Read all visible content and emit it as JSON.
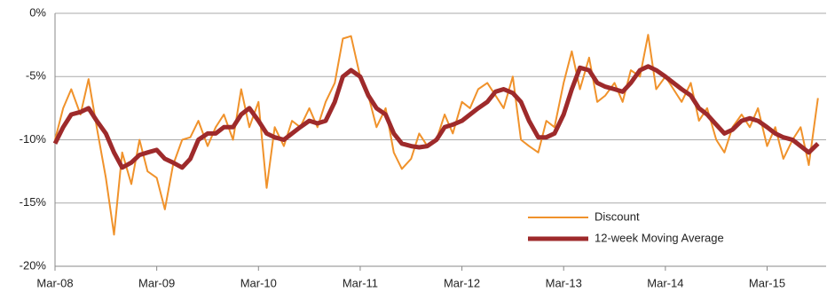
{
  "chart_data": {
    "type": "line",
    "x": [
      2008.17,
      2008.25,
      2008.33,
      2008.42,
      2008.5,
      2008.58,
      2008.67,
      2008.75,
      2008.83,
      2008.92,
      2009.0,
      2009.08,
      2009.17,
      2009.25,
      2009.33,
      2009.42,
      2009.5,
      2009.58,
      2009.67,
      2009.75,
      2009.83,
      2009.92,
      2010.0,
      2010.08,
      2010.17,
      2010.25,
      2010.33,
      2010.42,
      2010.5,
      2010.58,
      2010.67,
      2010.75,
      2010.83,
      2010.92,
      2011.0,
      2011.08,
      2011.17,
      2011.25,
      2011.33,
      2011.42,
      2011.5,
      2011.58,
      2011.67,
      2011.75,
      2011.83,
      2011.92,
      2012.0,
      2012.08,
      2012.17,
      2012.25,
      2012.33,
      2012.42,
      2012.5,
      2012.58,
      2012.67,
      2012.75,
      2012.83,
      2012.92,
      2013.0,
      2013.08,
      2013.17,
      2013.25,
      2013.33,
      2013.42,
      2013.5,
      2013.58,
      2013.67,
      2013.75,
      2013.83,
      2013.92,
      2014.0,
      2014.08,
      2014.17,
      2014.25,
      2014.33,
      2014.42,
      2014.5,
      2014.58,
      2014.67,
      2014.75,
      2014.83,
      2014.92,
      2015.0,
      2015.08,
      2015.17,
      2015.25,
      2015.33,
      2015.42,
      2015.5,
      2015.58,
      2015.67
    ],
    "series": [
      {
        "name": "Discount",
        "color": "#f0922b",
        "width": 2,
        "values": [
          -10,
          -7.5,
          -6,
          -8,
          -5.2,
          -9,
          -13,
          -17.5,
          -11,
          -13.5,
          -10,
          -12.5,
          -13,
          -15.5,
          -12,
          -10,
          -9.8,
          -8.5,
          -10.5,
          -9,
          -8,
          -10,
          -6,
          -9,
          -7,
          -13.8,
          -9,
          -10.5,
          -8.5,
          -9,
          -7.5,
          -9,
          -7,
          -5.5,
          -2,
          -1.8,
          -5,
          -6.5,
          -9,
          -7.5,
          -11,
          -12.3,
          -11.5,
          -9.5,
          -10.5,
          -10,
          -8,
          -9.5,
          -7,
          -7.5,
          -6,
          -5.5,
          -6.5,
          -7.5,
          -5,
          -10,
          -10.5,
          -11,
          -8.5,
          -9,
          -5.5,
          -3,
          -6,
          -3.5,
          -7,
          -6.5,
          -5.5,
          -7,
          -4.5,
          -5,
          -1.7,
          -6,
          -5,
          -6,
          -7,
          -5.5,
          -8.5,
          -7.5,
          -10,
          -11,
          -9,
          -8,
          -9,
          -7.5,
          -10.5,
          -9,
          -11.5,
          -10,
          -9,
          -12,
          -6.7
        ]
      },
      {
        "name": "12-week Moving Average",
        "color": "#9e2a2b",
        "width": 5,
        "values": [
          -10.3,
          -9,
          -8,
          -7.8,
          -7.5,
          -8.5,
          -9.5,
          -11,
          -12.2,
          -11.8,
          -11.2,
          -11,
          -10.8,
          -11.5,
          -11.8,
          -12.2,
          -11.5,
          -10,
          -9.5,
          -9.5,
          -9,
          -9,
          -8,
          -7.5,
          -8.5,
          -9.5,
          -9.8,
          -10,
          -9.5,
          -9,
          -8.5,
          -8.7,
          -8.5,
          -7,
          -5,
          -4.5,
          -5,
          -6.5,
          -7.5,
          -8,
          -9.5,
          -10.3,
          -10.5,
          -10.6,
          -10.5,
          -10,
          -9,
          -8.8,
          -8.5,
          -8,
          -7.5,
          -7,
          -6.2,
          -6,
          -6.3,
          -7,
          -8.5,
          -9.8,
          -9.8,
          -9.5,
          -8,
          -6,
          -4.3,
          -4.5,
          -5.5,
          -5.8,
          -6,
          -6.2,
          -5.5,
          -4.5,
          -4.2,
          -4.5,
          -5,
          -5.5,
          -6,
          -6.5,
          -7.5,
          -8,
          -8.8,
          -9.5,
          -9.2,
          -8.5,
          -8.3,
          -8.5,
          -9,
          -9.5,
          -9.8,
          -10,
          -10.5,
          -11,
          -10.3
        ]
      }
    ],
    "xlim": [
      2008.17,
      2015.75
    ],
    "xticks": [
      {
        "value": 2008.17,
        "label": "Mar-08"
      },
      {
        "value": 2009.17,
        "label": "Mar-09"
      },
      {
        "value": 2010.17,
        "label": "Mar-10"
      },
      {
        "value": 2011.17,
        "label": "Mar-11"
      },
      {
        "value": 2012.17,
        "label": "Mar-12"
      },
      {
        "value": 2013.17,
        "label": "Mar-13"
      },
      {
        "value": 2014.17,
        "label": "Mar-14"
      },
      {
        "value": 2015.17,
        "label": "Mar-15"
      }
    ],
    "ylim": [
      -20,
      0
    ],
    "yticks": [
      {
        "value": -20,
        "label": "-20%"
      },
      {
        "value": -15,
        "label": "-15%"
      },
      {
        "value": -10,
        "label": "-10%"
      },
      {
        "value": -5,
        "label": "-5%"
      },
      {
        "value": 0,
        "label": "0%"
      }
    ],
    "grid": true,
    "legend": "lower right"
  }
}
